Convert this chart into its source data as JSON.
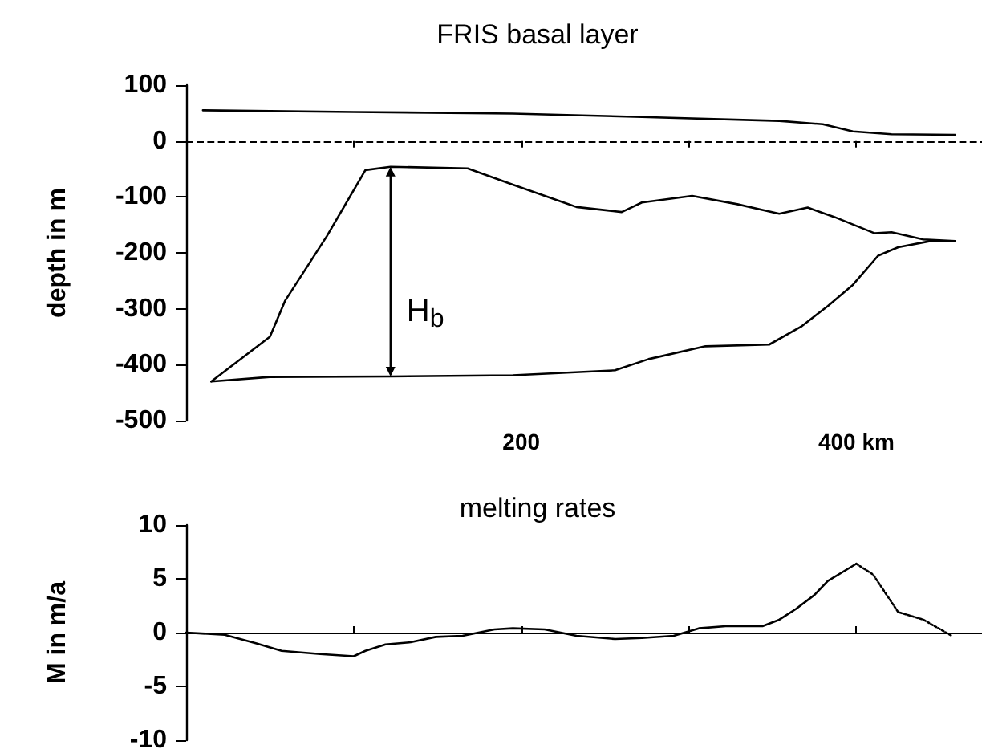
{
  "chart_data": [
    {
      "type": "line",
      "title": "FRIS basal layer",
      "ylabel": "depth in m",
      "xlim": [
        0,
        475
      ],
      "xticks": [
        {
          "value": 100,
          "label": null
        },
        {
          "value": 200,
          "label": "200"
        },
        {
          "value": 300,
          "label": null
        },
        {
          "value": 400,
          "label": "400 km"
        }
      ],
      "ylim": [
        -500,
        100
      ],
      "yticks": [
        -500,
        -400,
        -300,
        -200,
        -100,
        0,
        100
      ],
      "grid": false,
      "marker": "none",
      "line_style": "solid",
      "series": [
        {
          "color": "#000000",
          "x": [
            10,
            100,
            195,
            272,
            354,
            380,
            398,
            421,
            459
          ],
          "values": [
            55,
            52,
            49,
            43,
            36,
            30,
            17,
            12,
            11
          ]
        },
        {
          "color": "#000000",
          "x": [
            15,
            50,
            59,
            84,
            107,
            122,
            168,
            195,
            233,
            260,
            272,
            302,
            329,
            354,
            371,
            387,
            411,
            421,
            440,
            459
          ],
          "values": [
            -430,
            -350,
            -286,
            -170,
            -52,
            -46,
            -49,
            -78,
            -118,
            -127,
            -110,
            -98,
            -113,
            -130,
            -119,
            -136,
            -165,
            -163,
            -176,
            -179
          ]
        },
        {
          "color": "#000000",
          "x": [
            15,
            50,
            122,
            195,
            256,
            276,
            310,
            348,
            367,
            383,
            398,
            413,
            425,
            444,
            459
          ],
          "values": [
            -430,
            -422,
            -421,
            -419,
            -410,
            -390,
            -367,
            -364,
            -332,
            -295,
            -257,
            -205,
            -190,
            -179,
            -179
          ]
        }
      ],
      "ref_lines": [
        {
          "axis": "y",
          "value": 0,
          "line_style": "dashed",
          "color": "#000000"
        }
      ],
      "annotations": [
        "H$_{b}$"
      ]
    },
    {
      "type": "line",
      "title": "melting rates",
      "ylabel": "M in m/a",
      "xlim": [
        0,
        475
      ],
      "xticks": [
        100,
        200,
        300,
        400
      ],
      "ylim": [
        -10,
        10
      ],
      "yticks": [
        -10,
        -5,
        0,
        5,
        10
      ],
      "tick_labels": "y",
      "grid": false,
      "marker": "none",
      "ref_lines": [
        {
          "axis": "y",
          "value": 0,
          "line_style": "solid",
          "color": "#000000"
        }
      ],
      "series": [
        {
          "color": "#000000",
          "line_style": "solid",
          "x": [
            0,
            23,
            42,
            57,
            80,
            100,
            107,
            119,
            134,
            149,
            165,
            184,
            195,
            214,
            233,
            256,
            272,
            291,
            306,
            322,
            344,
            354,
            364,
            375,
            383,
            400
          ],
          "values": [
            0,
            -0.2,
            -1.0,
            -1.7,
            -2.0,
            -2.2,
            -1.7,
            -1.1,
            -0.9,
            -0.4,
            -0.3,
            0.3,
            0.4,
            0.3,
            -0.3,
            -0.6,
            -0.5,
            -0.3,
            0.4,
            0.6,
            0.6,
            1.2,
            2.2,
            3.5,
            4.8,
            6.4
          ]
        },
        {
          "color": "#000000",
          "line_style": "dotted",
          "x": [
            400,
            410,
            425,
            440,
            457
          ],
          "values": [
            6.4,
            5.4,
            1.9,
            1.2,
            -0.3
          ]
        }
      ]
    }
  ]
}
